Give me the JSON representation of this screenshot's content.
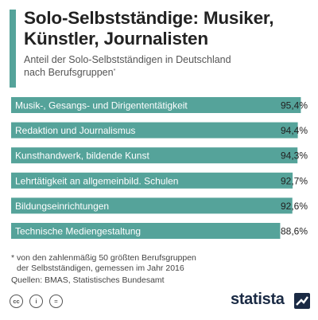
{
  "header": {
    "title_line1": "Solo-Selbstständige: Musiker,",
    "title_line2": "Künstler, Journalisten",
    "subtitle_line1": "Anteil der Solo-Selbstständigen in Deutschland",
    "subtitle_line2": "nach Berufsgruppen",
    "subtitle_marker": "*"
  },
  "chart_data": {
    "type": "bar",
    "orientation": "horizontal",
    "categories": [
      "Musik-, Gesangs- und Dirigententätigkeit",
      "Redaktion und Journalismus",
      "Kunsthandwerk, bildende Kunst",
      "Lehrtätigkeit an allgemeinbild. Schulen",
      "Bildungseinrichtungen",
      "Technische Mediengestaltung"
    ],
    "values": [
      95.4,
      94.4,
      94.3,
      92.7,
      92.6,
      88.6
    ],
    "value_labels": [
      "95,4%",
      "94,4%",
      "94,3%",
      "92,7%",
      "92,6%",
      "88,6%"
    ],
    "bar_color": "#55a39a",
    "label_color": "#ffffff",
    "grid": false,
    "legend": "none"
  },
  "footer": {
    "footnote_line1": "* von den zahlenmäßig 50 größten Berufsgruppen",
    "footnote_line2": "der Selbstständigen, gemessen im Jahr 2016",
    "source": "Quellen: BMAS, Statistisches Bundesamt",
    "license_icons": [
      "creative-commons-icon",
      "attribution-icon",
      "no-derivatives-icon"
    ],
    "license_labels": [
      "cc",
      "i",
      "="
    ],
    "brand": "statista"
  },
  "colors": {
    "accent": "#55a39a",
    "brand_dark": "#1a2a44"
  }
}
